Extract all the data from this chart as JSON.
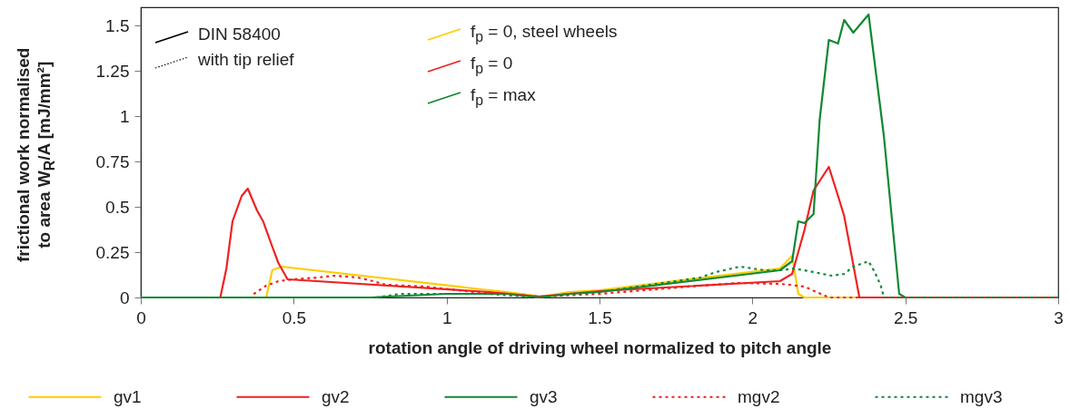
{
  "chart_data": {
    "type": "line",
    "xlabel": "rotation angle of driving wheel normalized to pitch angle",
    "ylabel": "frictional work normalised to area W$_{R}$/A  [mJ/mm²]",
    "xlim": [
      0,
      3
    ],
    "xticks": [
      0,
      0.5,
      1,
      1.5,
      2,
      2.5,
      3
    ],
    "ylim": [
      0,
      1.6
    ],
    "yticks": [
      0,
      0.25,
      0.5,
      0.75,
      1,
      1.25,
      1.5
    ],
    "grid": false,
    "legend": "bottom",
    "marker": "none",
    "annotations": [
      "DIN 58400",
      "with tip relief",
      "f$_{p}$ = 0, steel wheels",
      "f$_{p}$ = 0",
      "f$_{p}$ = max"
    ],
    "series": [
      {
        "name": "gv1",
        "color": "#ffcc00",
        "line_style": "solid",
        "x": [
          0,
          0.41,
          0.43,
          0.46,
          1.14,
          1.2,
          1.31,
          1.4,
          1.5,
          2.09,
          2.13,
          2.15,
          2.17,
          3
        ],
        "values": [
          0,
          0,
          0.15,
          0.17,
          0.04,
          0.03,
          0.005,
          0.03,
          0.04,
          0.16,
          0.23,
          0.02,
          0,
          0
        ]
      },
      {
        "name": "gv2",
        "color": "#ee2222",
        "line_style": "solid",
        "x": [
          0,
          0.26,
          0.28,
          0.3,
          0.33,
          0.35,
          0.38,
          0.4,
          0.43,
          0.45,
          0.48,
          1.14,
          1.3,
          1.5,
          2.09,
          2.13,
          2.17,
          2.2,
          2.25,
          2.28,
          2.3,
          2.35,
          3
        ],
        "values": [
          0,
          0,
          0.16,
          0.42,
          0.56,
          0.6,
          0.48,
          0.42,
          0.28,
          0.19,
          0.1,
          0.03,
          0.005,
          0.035,
          0.09,
          0.13,
          0.37,
          0.59,
          0.72,
          0.56,
          0.45,
          0,
          0
        ]
      },
      {
        "name": "gv3",
        "color": "#118833",
        "line_style": "solid",
        "x": [
          0,
          0.75,
          1.0,
          1.2,
          1.3,
          1.4,
          1.5,
          2.09,
          2.13,
          2.15,
          2.17,
          2.2,
          2.22,
          2.25,
          2.28,
          2.3,
          2.33,
          2.35,
          2.38,
          2.43,
          2.48,
          2.5,
          3
        ],
        "values": [
          0,
          0,
          0.02,
          0.02,
          0,
          0.02,
          0.03,
          0.15,
          0.2,
          0.42,
          0.41,
          0.46,
          0.98,
          1.42,
          1.4,
          1.53,
          1.46,
          1.5,
          1.56,
          0.89,
          0.02,
          0,
          0
        ]
      },
      {
        "name": "mgv2",
        "color": "#ee2222",
        "line_style": "dotted",
        "x": [
          0,
          0.36,
          0.37,
          0.41,
          0.45,
          0.5,
          0.58,
          0.63,
          0.71,
          0.76,
          0.8,
          0.93,
          1.09,
          1.2,
          1.3,
          1.5,
          1.83,
          1.96,
          2.09,
          2.12,
          2.17,
          2.21,
          2.25,
          3
        ],
        "values": [
          0,
          0,
          0.02,
          0.065,
          0.09,
          0.1,
          0.11,
          0.12,
          0.11,
          0.09,
          0.07,
          0.06,
          0.03,
          0.02,
          0.005,
          0.02,
          0.065,
          0.08,
          0.075,
          0.07,
          0.06,
          0.03,
          0,
          0
        ]
      },
      {
        "name": "mgv3",
        "color": "#118833",
        "line_style": "dotted",
        "x": [
          0,
          0.77,
          0.81,
          0.85,
          0.98,
          1.14,
          1.3,
          1.5,
          1.83,
          1.88,
          1.96,
          2.04,
          2.1,
          2.13,
          2.17,
          2.26,
          2.3,
          2.33,
          2.38,
          2.4,
          2.42,
          2.43,
          3
        ],
        "values": [
          0,
          0,
          0.01,
          0.02,
          0.02,
          0.02,
          0,
          0.03,
          0.11,
          0.14,
          0.17,
          0.15,
          0.15,
          0.16,
          0.15,
          0.12,
          0.13,
          0.17,
          0.2,
          0.14,
          0.065,
          0,
          0
        ]
      }
    ]
  }
}
